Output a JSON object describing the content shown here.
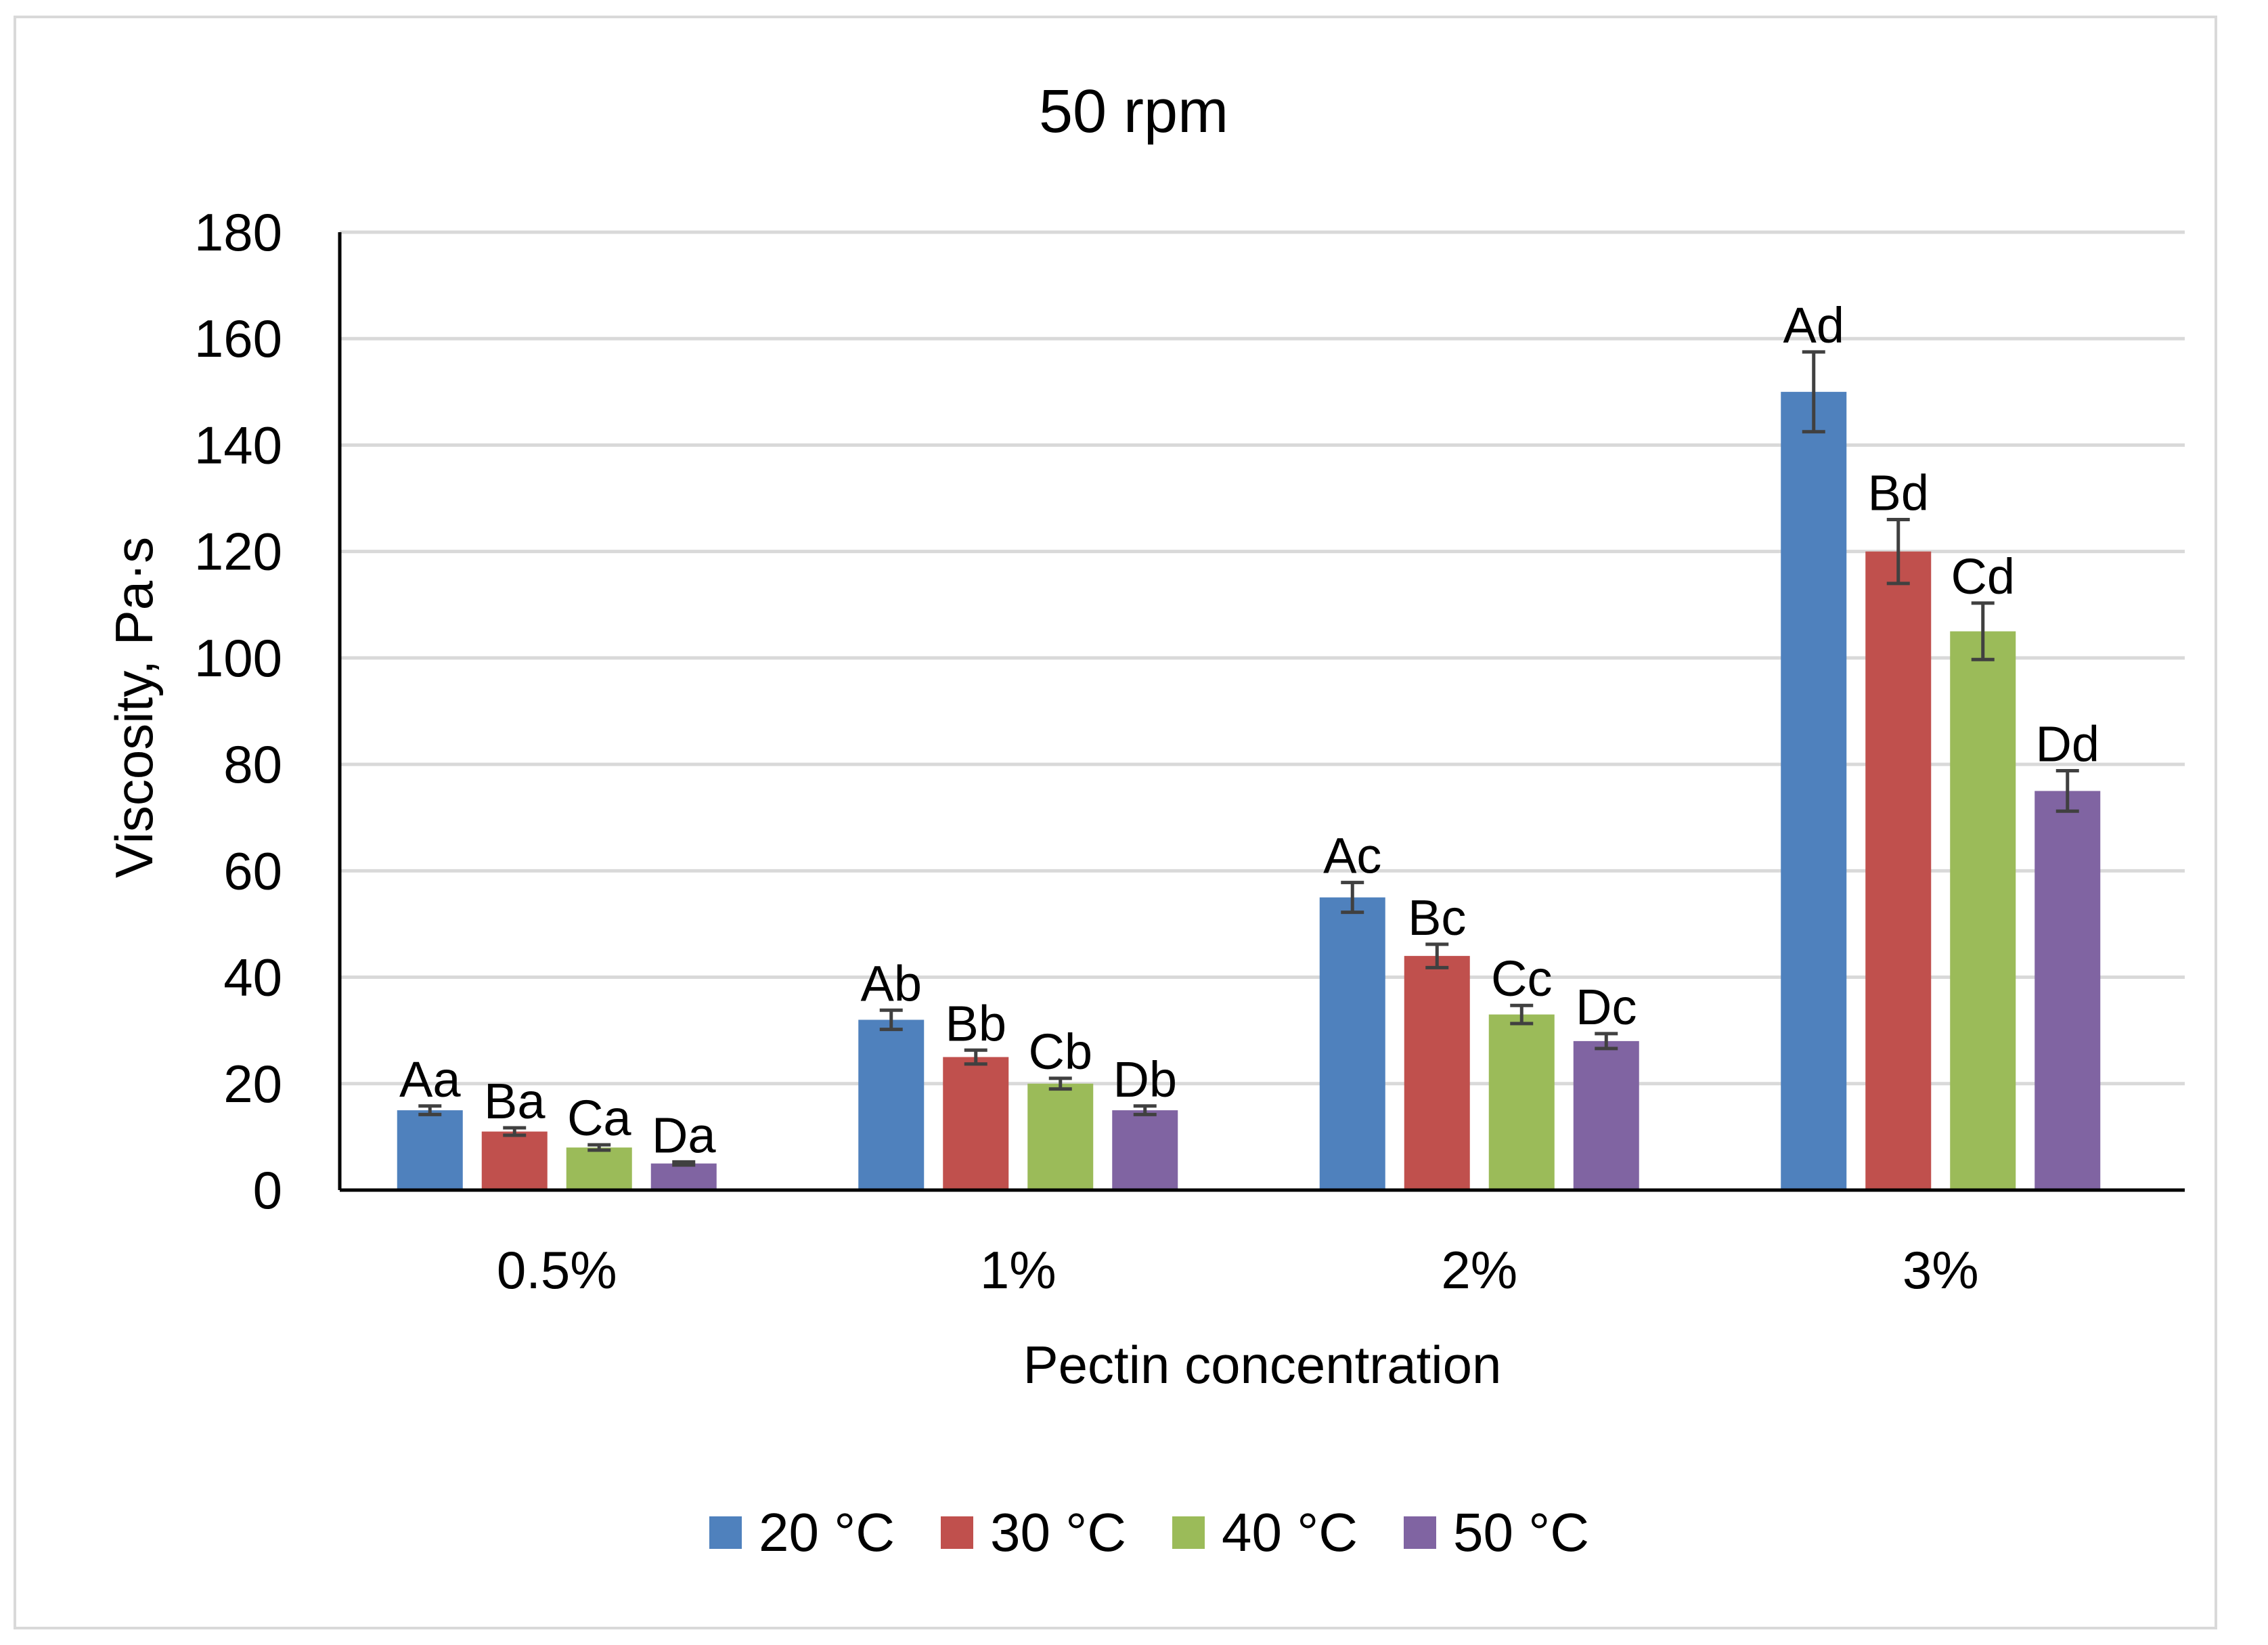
{
  "chart_data": {
    "type": "bar",
    "title": "50 rpm",
    "xlabel": "Pectin concentration",
    "ylabel": "Viscosity, Pa·s",
    "ylim": [
      0,
      180
    ],
    "yticks": [
      0,
      20,
      40,
      60,
      80,
      100,
      120,
      140,
      160,
      180
    ],
    "grid": true,
    "legend_position": "bottom",
    "categories": [
      "0.5%",
      "1%",
      "2%",
      "3%"
    ],
    "series": [
      {
        "name": "20 °C",
        "color": "#4f81bd",
        "values": [
          15,
          32,
          55,
          150
        ],
        "errors": [
          0.8,
          1.8,
          2.8,
          7.5
        ],
        "labels": [
          "Aa",
          "Ab",
          "Ac",
          "Ad"
        ]
      },
      {
        "name": "30 °C",
        "color": "#c0504d",
        "values": [
          11,
          25,
          44,
          120
        ],
        "errors": [
          0.7,
          1.3,
          2.2,
          6.0
        ],
        "labels": [
          "Ba",
          "Bb",
          "Bc",
          "Bd"
        ]
      },
      {
        "name": "40 °C",
        "color": "#9bbb59",
        "values": [
          8,
          20,
          33,
          105
        ],
        "errors": [
          0.5,
          1.0,
          1.7,
          5.3
        ],
        "labels": [
          "Ca",
          "Cb",
          "Cc",
          "Cd"
        ]
      },
      {
        "name": "50 °C",
        "color": "#8064a2",
        "values": [
          5,
          15,
          28,
          75
        ],
        "errors": [
          0.3,
          0.8,
          1.4,
          3.8
        ],
        "labels": [
          "Da",
          "Db",
          "Dc",
          "Dd"
        ]
      }
    ]
  }
}
